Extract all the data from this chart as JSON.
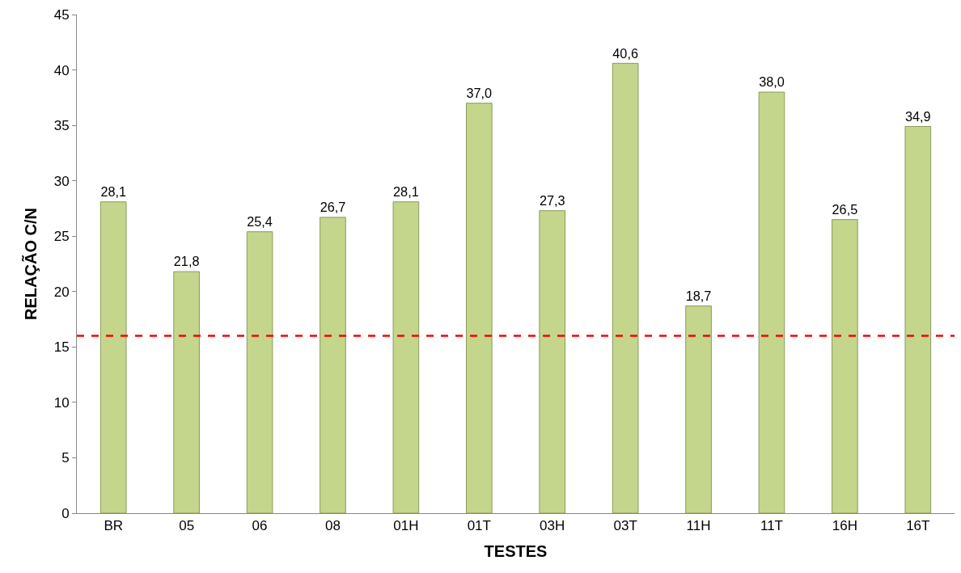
{
  "chart_data": {
    "type": "bar",
    "xlabel": "TESTES",
    "ylabel": "RELAÇÃO C/N",
    "categories": [
      "BR",
      "05",
      "06",
      "08",
      "01H",
      "01T",
      "03H",
      "03T",
      "11H",
      "11T",
      "16H",
      "16T"
    ],
    "values": [
      28.1,
      21.8,
      25.4,
      26.7,
      28.1,
      37.0,
      27.3,
      40.6,
      18.7,
      38.0,
      26.5,
      34.9
    ],
    "value_labels": [
      "28,1",
      "21,8",
      "25,4",
      "26,7",
      "28,1",
      "37,0",
      "27,3",
      "40,6",
      "18,7",
      "38,0",
      "26,5",
      "34,9"
    ],
    "color": "#c3d68c",
    "ylim": [
      0,
      45
    ],
    "yticks": [
      0,
      5,
      10,
      15,
      20,
      25,
      30,
      35,
      40,
      45
    ],
    "ref_lines": [
      {
        "axis": "y",
        "value": 16,
        "color": "#ff0000",
        "line_style": "dashed"
      }
    ]
  }
}
